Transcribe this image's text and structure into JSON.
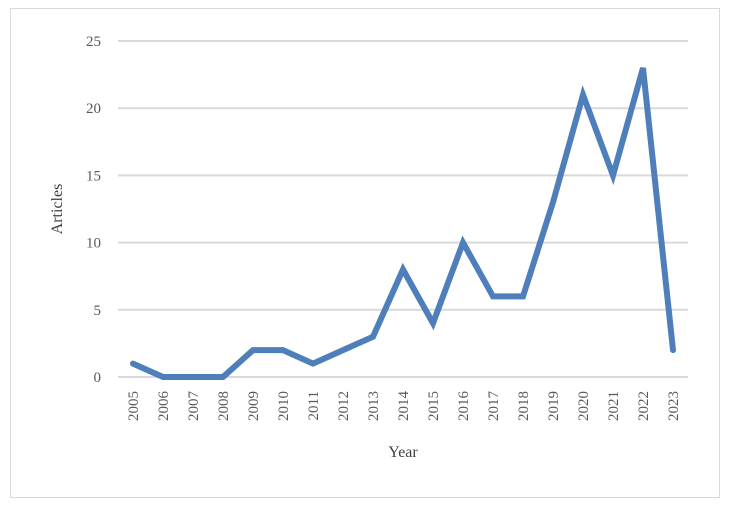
{
  "chart_data": {
    "type": "line",
    "x": [
      "2005",
      "2006",
      "2007",
      "2008",
      "2009",
      "2010",
      "2011",
      "2012",
      "2013",
      "2014",
      "2015",
      "2016",
      "2017",
      "2018",
      "2019",
      "2020",
      "2021",
      "2022",
      "2023"
    ],
    "series": [
      {
        "values": [
          1,
          0,
          0,
          0,
          2,
          2,
          1,
          2,
          3,
          8,
          4,
          10,
          6,
          6,
          13,
          21,
          15,
          23,
          2
        ],
        "color": "#4f7fbb"
      }
    ],
    "xlabel": "Year",
    "ylabel": "Articles",
    "ylim": [
      0,
      25
    ],
    "yticks": [
      0,
      5,
      10,
      15,
      20,
      25
    ],
    "grid": "horizontal",
    "legend": "none"
  }
}
